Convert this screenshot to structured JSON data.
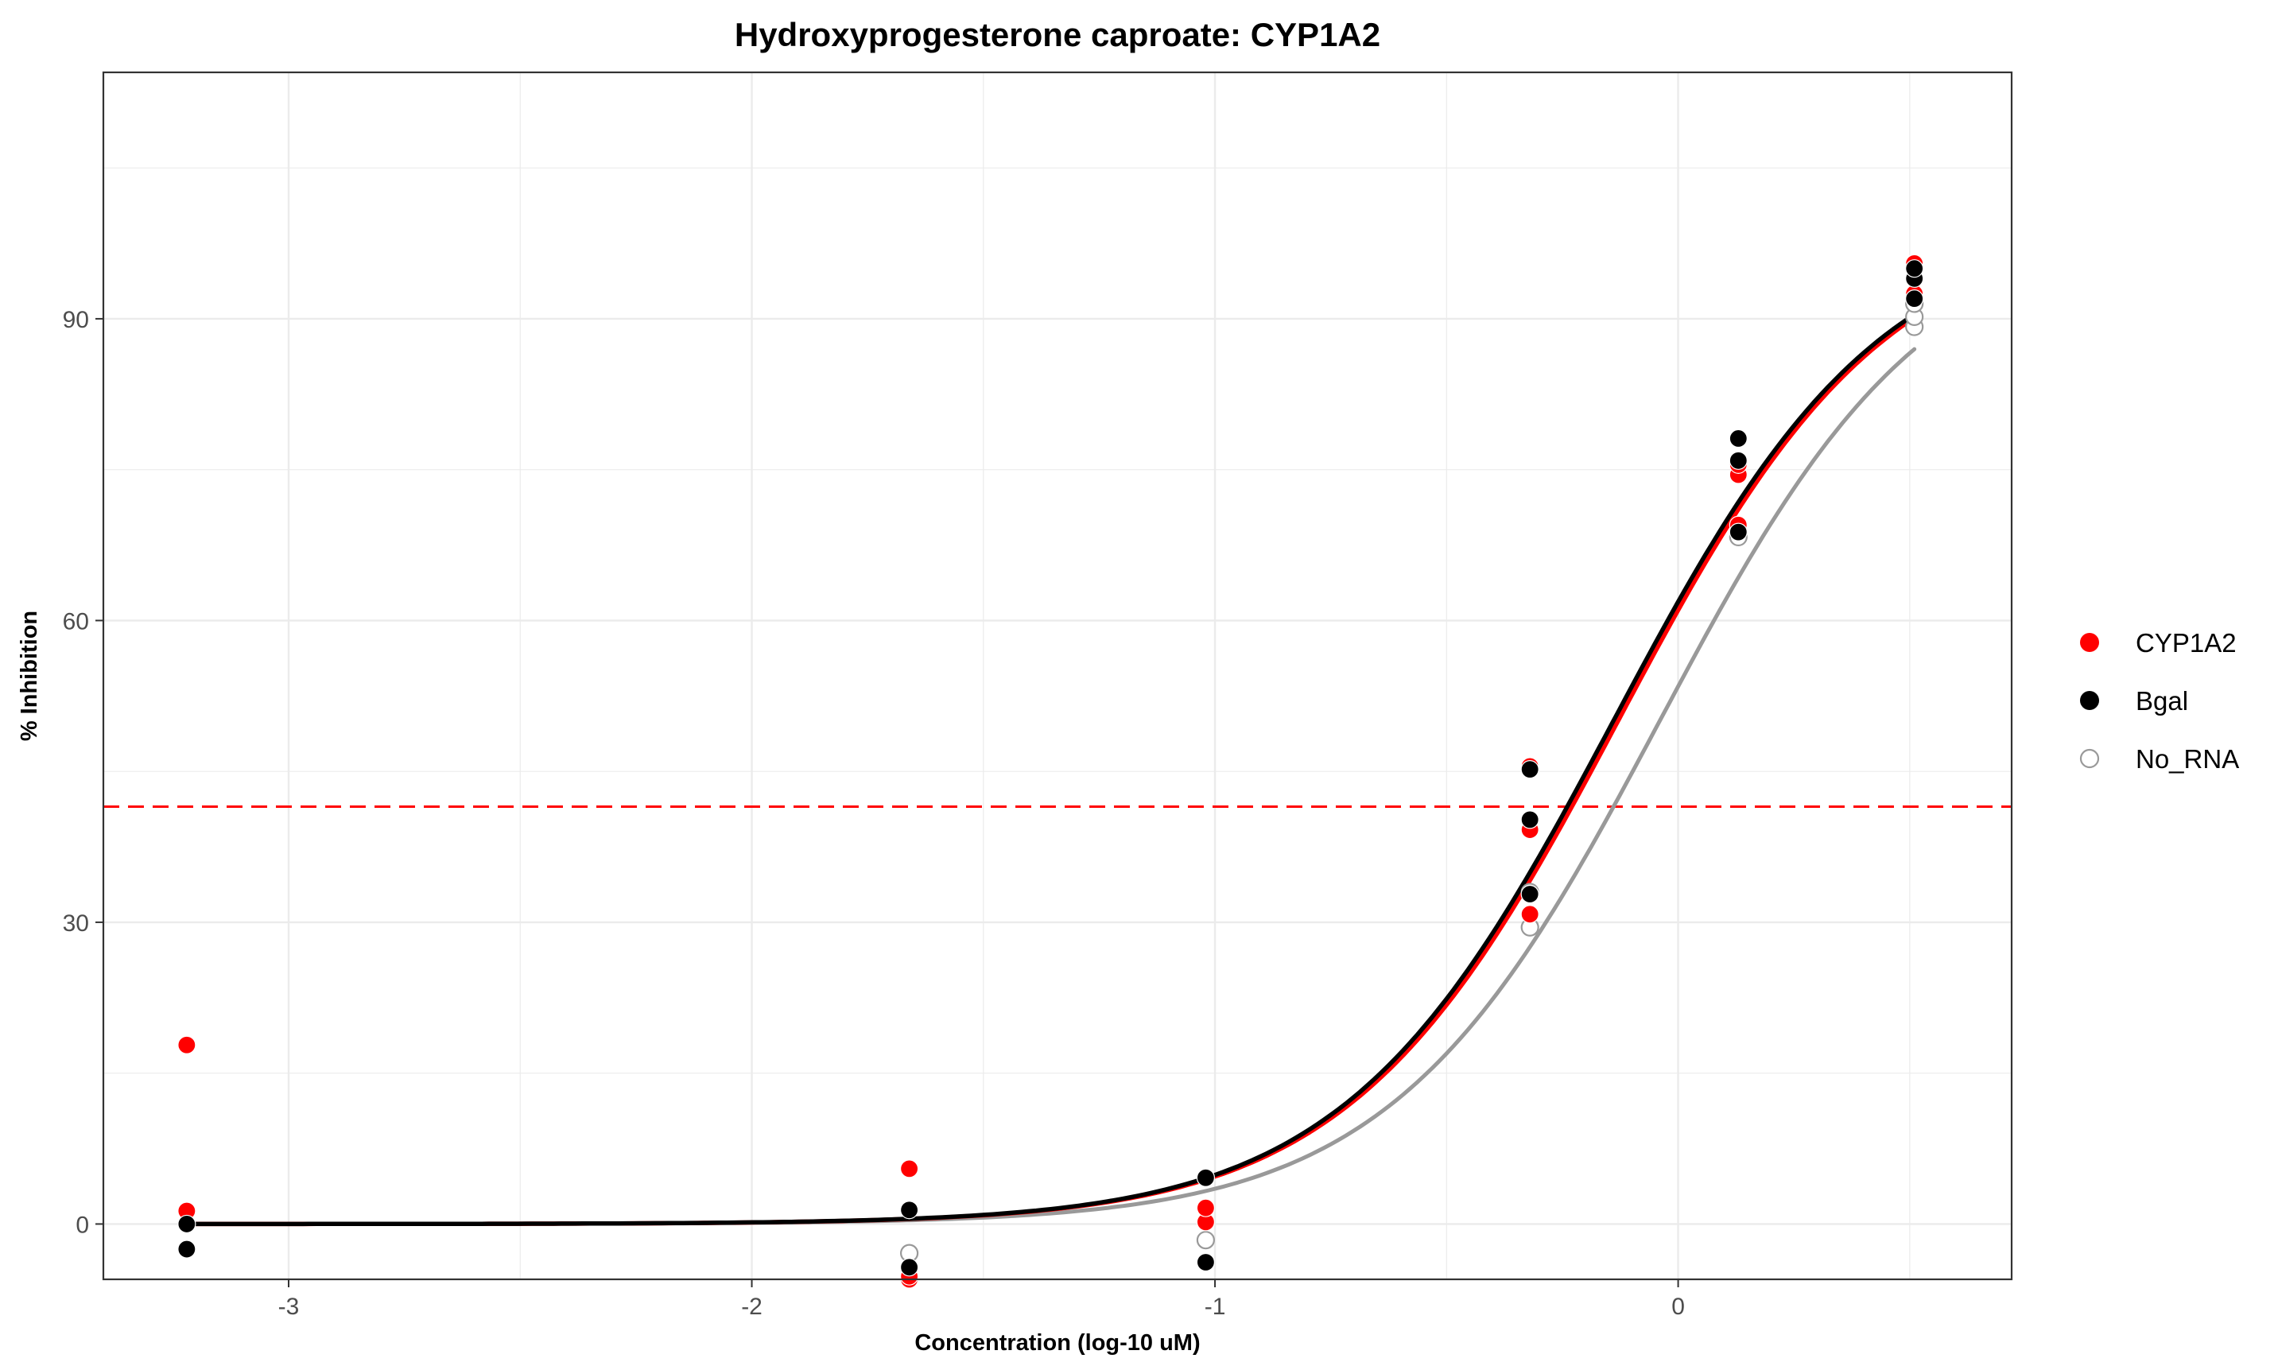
{
  "chart_data": {
    "type": "scatter",
    "title": "Hydroxyprogesterone caproate: CYP1A2",
    "xlabel": "Concentration (log-10 uM)",
    "ylabel": "% Inhibition",
    "xlim": [
      -3.4,
      0.72
    ],
    "ylim": [
      114.5,
      -5.5
    ],
    "y_reversed": true,
    "x_ticks": [
      -3,
      -2,
      -1,
      0
    ],
    "y_ticks": [
      0,
      30,
      60,
      90
    ],
    "grid": true,
    "legend_position": "right",
    "reference_line": {
      "y": 41.5,
      "color": "#ff0000",
      "style": "dashed"
    },
    "series": [
      {
        "name": "CYP1A2",
        "color": "#ff0000",
        "marker": "filled",
        "points": [
          [
            -3.22,
            1.3
          ],
          [
            -3.22,
            17.8
          ],
          [
            -1.66,
            -5.5
          ],
          [
            -1.66,
            -5.2
          ],
          [
            -1.66,
            5.5
          ],
          [
            -1.02,
            0.2
          ],
          [
            -1.02,
            1.6
          ],
          [
            -0.32,
            30.8
          ],
          [
            -0.32,
            39.2
          ],
          [
            -0.32,
            45.5
          ],
          [
            0.13,
            69.5
          ],
          [
            0.13,
            74.5
          ],
          [
            0.13,
            75.5
          ],
          [
            0.51,
            92.5
          ],
          [
            0.51,
            95.0
          ],
          [
            0.51,
            95.5
          ]
        ],
        "curve": {
          "bottom": 0,
          "top": 100,
          "log_ic50": -0.13,
          "hill": 1.5
        }
      },
      {
        "name": "Bgal",
        "color": "#000000",
        "marker": "filled",
        "points": [
          [
            -3.22,
            -2.5
          ],
          [
            -3.22,
            0.0
          ],
          [
            -1.66,
            -4.3
          ],
          [
            -1.66,
            1.4
          ],
          [
            -1.02,
            -3.8
          ],
          [
            -1.02,
            4.6
          ],
          [
            -0.32,
            32.8
          ],
          [
            -0.32,
            40.2
          ],
          [
            -0.32,
            45.2
          ],
          [
            0.13,
            68.8
          ],
          [
            0.13,
            75.9
          ],
          [
            0.13,
            78.1
          ],
          [
            0.51,
            92.0
          ],
          [
            0.51,
            94.0
          ],
          [
            0.51,
            95.0
          ]
        ],
        "curve": {
          "bottom": 0,
          "top": 100,
          "log_ic50": -0.14,
          "hill": 1.5
        }
      },
      {
        "name": "No_RNA",
        "color": "#999999",
        "marker": "open",
        "points": [
          [
            -1.66,
            -2.9
          ],
          [
            -1.02,
            -1.6
          ],
          [
            -0.32,
            29.5
          ],
          [
            -0.32,
            33.0
          ],
          [
            0.13,
            68.3
          ],
          [
            0.51,
            89.2
          ],
          [
            0.51,
            90.2
          ],
          [
            0.51,
            91.5
          ]
        ],
        "curve": {
          "bottom": 0,
          "top": 100,
          "log_ic50": -0.04,
          "hill": 1.5
        }
      }
    ]
  }
}
